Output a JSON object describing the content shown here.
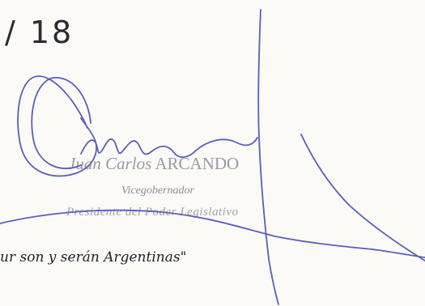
{
  "document": {
    "number_fragment": "/ 18",
    "signatory": {
      "first_names": "Juan Carlos",
      "surname": "ARCANDO",
      "title": "Vicegobernador",
      "office": "Presidente del Poder Legislativo"
    },
    "motto": "ur son y serán Argentinas\""
  },
  "colors": {
    "ink": "#5a5fb8",
    "stamp_text": "#9a9aa2",
    "print": "#1f1f24"
  }
}
